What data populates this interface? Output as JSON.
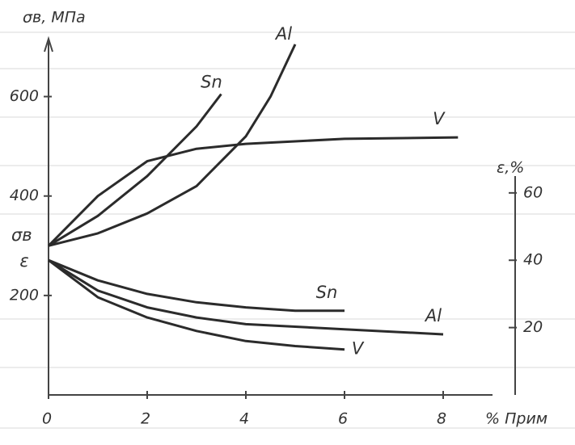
{
  "chart_data": {
    "type": "line",
    "y_label": "σв, МПа",
    "y2_label": "ε,%",
    "x_label": "% Прим",
    "annotations": [
      "σв",
      "ε"
    ],
    "xlim": [
      0,
      9
    ],
    "xticks": [
      0,
      2,
      4,
      6,
      8
    ],
    "ylim": [
      0,
      700
    ],
    "yticks": [
      200,
      400,
      600
    ],
    "y2lim": [
      0,
      65
    ],
    "y2ticks": [
      20,
      40,
      60
    ],
    "series": [
      {
        "name": "Sn",
        "color": "#2b2b2b",
        "x": [
          0,
          1,
          2,
          3,
          3.5
        ],
        "values": [
          300,
          360,
          440,
          540,
          605
        ]
      },
      {
        "name": "Al",
        "color": "#2b2b2b",
        "x": [
          0,
          1,
          2,
          3,
          4,
          4.5,
          5
        ],
        "values": [
          300,
          325,
          365,
          420,
          520,
          600,
          705
        ]
      },
      {
        "name": "V",
        "color": "#2b2b2b",
        "x": [
          0,
          1,
          2,
          3,
          4,
          5,
          6,
          8.3
        ],
        "values": [
          300,
          400,
          470,
          495,
          505,
          510,
          515,
          518
        ]
      },
      {
        "name": "Sn",
        "color": "#2b2b2b",
        "axis": "y2",
        "x": [
          0,
          1,
          2,
          3,
          4,
          5,
          6
        ],
        "values": [
          40,
          34,
          30,
          27.5,
          26,
          25,
          25
        ]
      },
      {
        "name": "Al",
        "color": "#2b2b2b",
        "axis": "y2",
        "x": [
          0,
          1,
          2,
          3,
          4,
          6,
          8
        ],
        "values": [
          40,
          31,
          26,
          23,
          21,
          19.5,
          18
        ]
      },
      {
        "name": "V",
        "color": "#2b2b2b",
        "axis": "y2",
        "x": [
          0,
          1,
          2,
          3,
          4,
          5,
          6
        ],
        "values": [
          40,
          29,
          23,
          19,
          16,
          14.5,
          13.5
        ]
      }
    ]
  }
}
